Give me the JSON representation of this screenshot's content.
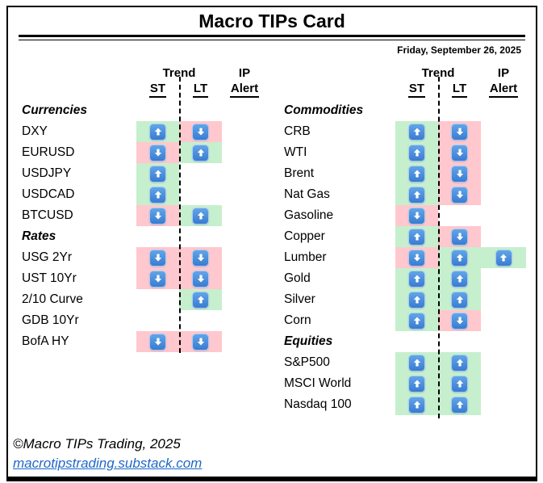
{
  "title": "Macro TIPs Card",
  "date": "Friday, September 26, 2025",
  "headers": {
    "trend": "Trend",
    "ip": "IP",
    "st": "ST",
    "lt": "LT",
    "alert": "Alert"
  },
  "footer": {
    "copyright": "©Macro TIPs Trading, 2025",
    "link": "macrotipstrading.substack.com"
  },
  "colors": {
    "green": "#c6efce",
    "pink": "#ffc7ce",
    "arrow-top": "#61a5e8",
    "arrow-bottom": "#3a7bd0",
    "arrow-border": "#abcef2",
    "link": "#2068c9"
  },
  "tables": {
    "left": {
      "sections": [
        {
          "title": "Currencies",
          "rows": [
            {
              "label": "DXY",
              "st": {
                "arrow": "up",
                "bg": "green"
              },
              "lt": {
                "arrow": "down",
                "bg": "pink"
              },
              "alert": null
            },
            {
              "label": "EURUSD",
              "st": {
                "arrow": "down",
                "bg": "pink"
              },
              "lt": {
                "arrow": "up",
                "bg": "green"
              },
              "alert": null
            },
            {
              "label": "USDJPY",
              "st": {
                "arrow": "up",
                "bg": "green"
              },
              "lt": null,
              "alert": null
            },
            {
              "label": "USDCAD",
              "st": {
                "arrow": "up",
                "bg": "green"
              },
              "lt": null,
              "alert": null
            },
            {
              "label": "BTCUSD",
              "st": {
                "arrow": "down",
                "bg": "pink"
              },
              "lt": {
                "arrow": "up",
                "bg": "green"
              },
              "alert": null
            }
          ]
        },
        {
          "title": "Rates",
          "rows": [
            {
              "label": "USG 2Yr",
              "st": {
                "arrow": "down",
                "bg": "pink"
              },
              "lt": {
                "arrow": "down",
                "bg": "pink"
              },
              "alert": null
            },
            {
              "label": "UST 10Yr",
              "st": {
                "arrow": "down",
                "bg": "pink"
              },
              "lt": {
                "arrow": "down",
                "bg": "pink"
              },
              "alert": null
            },
            {
              "label": "2/10 Curve",
              "st": null,
              "lt": {
                "arrow": "up",
                "bg": "green"
              },
              "alert": null
            },
            {
              "label": "GDB 10Yr",
              "st": null,
              "lt": null,
              "alert": null
            },
            {
              "label": "BofA HY",
              "st": {
                "arrow": "down",
                "bg": "pink"
              },
              "lt": {
                "arrow": "down",
                "bg": "pink"
              },
              "alert": null
            }
          ]
        }
      ]
    },
    "right": {
      "sections": [
        {
          "title": "Commodities",
          "rows": [
            {
              "label": "CRB",
              "st": {
                "arrow": "up",
                "bg": "green"
              },
              "lt": {
                "arrow": "down",
                "bg": "pink"
              },
              "alert": null
            },
            {
              "label": "WTI",
              "st": {
                "arrow": "up",
                "bg": "green"
              },
              "lt": {
                "arrow": "down",
                "bg": "pink"
              },
              "alert": null
            },
            {
              "label": "Brent",
              "st": {
                "arrow": "up",
                "bg": "green"
              },
              "lt": {
                "arrow": "down",
                "bg": "pink"
              },
              "alert": null
            },
            {
              "label": "Nat Gas",
              "st": {
                "arrow": "up",
                "bg": "green"
              },
              "lt": {
                "arrow": "down",
                "bg": "pink"
              },
              "alert": null
            },
            {
              "label": "Gasoline",
              "st": {
                "arrow": "down",
                "bg": "pink"
              },
              "lt": null,
              "alert": null
            },
            {
              "label": "Copper",
              "st": {
                "arrow": "up",
                "bg": "green"
              },
              "lt": {
                "arrow": "down",
                "bg": "pink"
              },
              "alert": null
            },
            {
              "label": "Lumber",
              "st": {
                "arrow": "down",
                "bg": "pink"
              },
              "lt": {
                "arrow": "up",
                "bg": "green"
              },
              "alert": {
                "arrow": "up",
                "bg": "green"
              }
            },
            {
              "label": "Gold",
              "st": {
                "arrow": "up",
                "bg": "green"
              },
              "lt": {
                "arrow": "up",
                "bg": "green"
              },
              "alert": null
            },
            {
              "label": "Silver",
              "st": {
                "arrow": "up",
                "bg": "green"
              },
              "lt": {
                "arrow": "up",
                "bg": "green"
              },
              "alert": null
            },
            {
              "label": "Corn",
              "st": {
                "arrow": "up",
                "bg": "green"
              },
              "lt": {
                "arrow": "down",
                "bg": "pink"
              },
              "alert": null
            }
          ]
        },
        {
          "title": "Equities",
          "rows": [
            {
              "label": "S&P500",
              "st": {
                "arrow": "up",
                "bg": "green"
              },
              "lt": {
                "arrow": "up",
                "bg": "green"
              },
              "alert": null
            },
            {
              "label": "MSCI World",
              "st": {
                "arrow": "up",
                "bg": "green"
              },
              "lt": {
                "arrow": "up",
                "bg": "green"
              },
              "alert": null
            },
            {
              "label": "Nasdaq 100",
              "st": {
                "arrow": "up",
                "bg": "green"
              },
              "lt": {
                "arrow": "up",
                "bg": "green"
              },
              "alert": null
            }
          ]
        }
      ]
    }
  }
}
